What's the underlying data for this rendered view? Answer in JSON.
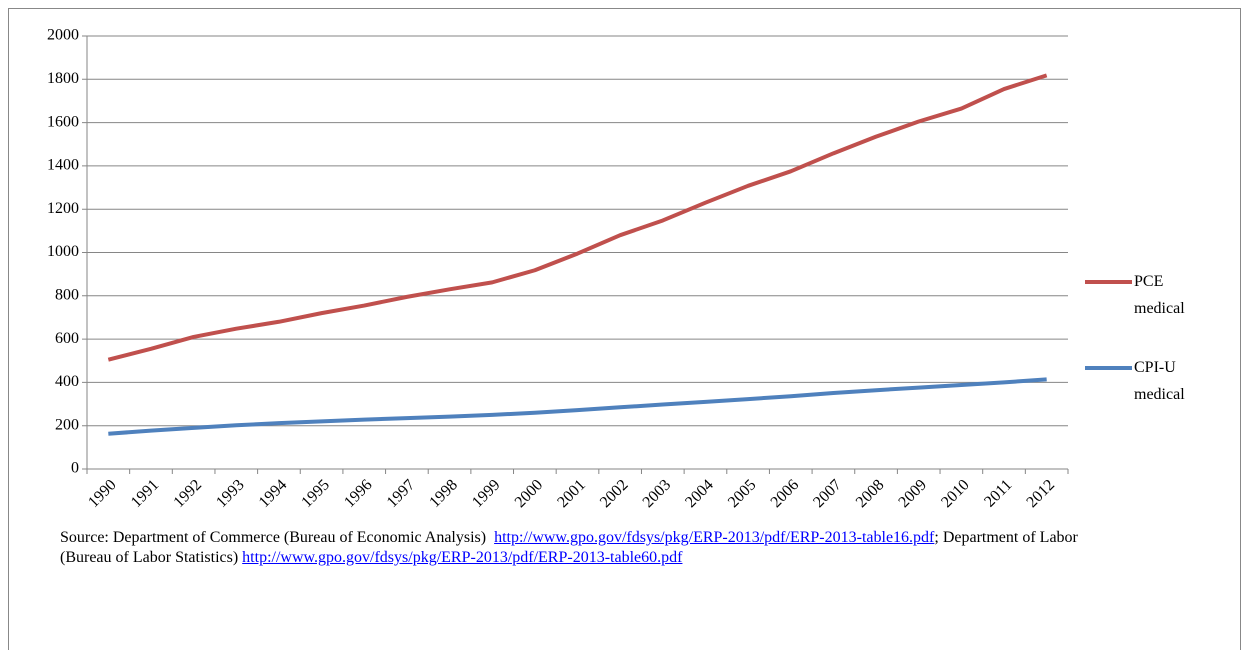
{
  "chart_data": {
    "type": "line",
    "categories": [
      "1990",
      "1991",
      "1992",
      "1993",
      "1994",
      "1995",
      "1996",
      "1997",
      "1998",
      "1999",
      "2000",
      "2001",
      "2002",
      "2003",
      "2004",
      "2005",
      "2006",
      "2007",
      "2008",
      "2009",
      "2010",
      "2011",
      "2012"
    ],
    "series": [
      {
        "name": "PCE medical",
        "color": "#c0504d",
        "values": [
          505,
          555,
          610,
          648,
          680,
          720,
          755,
          795,
          830,
          862,
          918,
          995,
          1080,
          1148,
          1230,
          1308,
          1375,
          1458,
          1535,
          1605,
          1665,
          1755,
          1818
        ]
      },
      {
        "name": "CPI-U medical",
        "color": "#4f81bd",
        "values": [
          163,
          177,
          190,
          202,
          212,
          220,
          228,
          235,
          242,
          250,
          260,
          272,
          285,
          298,
          310,
          323,
          336,
          351,
          364,
          376,
          388,
          400,
          414
        ]
      }
    ],
    "ylim": [
      0,
      2000
    ],
    "yticks": [
      0,
      200,
      400,
      600,
      800,
      1000,
      1200,
      1400,
      1600,
      1800,
      2000
    ],
    "grid": true,
    "legend": "right",
    "source": {
      "text1": "Source: Department of Commerce (Bureau of Economic Analysis)",
      "link1": "http://www.gpo.gov/fdsys/pkg/ERP-2013/pdf/ERP-2013-table16.pdf",
      "text2": "; Department of Labor (Bureau of Labor Statistics)",
      "link2": "http://www.gpo.gov/fdsys/pkg/ERP-2013/pdf/ERP-2013-table60.pdf"
    }
  }
}
